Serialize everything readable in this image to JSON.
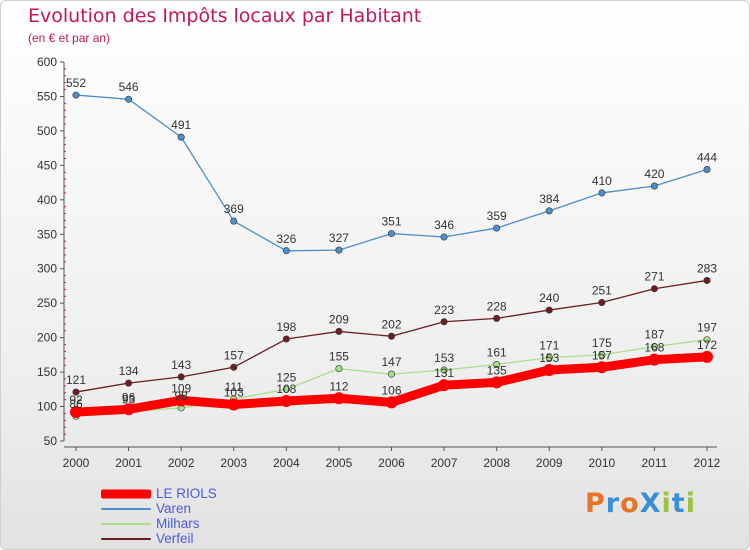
{
  "title": "Evolution des Impôts locaux par Habitant",
  "subtitle": "(en € et par an)",
  "logo": {
    "text": "ProXiti",
    "colors": [
      "#e8732a",
      "#3a8fd8",
      "#e8732a",
      "#3a8fd8",
      "#9bc33c",
      "#3a8fd8",
      "#9bc33c"
    ]
  },
  "chart_data": {
    "type": "line",
    "title": "Evolution des Impôts locaux par Habitant",
    "subtitle": "(en € et par an)",
    "x": [
      2000,
      2001,
      2002,
      2003,
      2004,
      2005,
      2006,
      2007,
      2008,
      2009,
      2010,
      2011,
      2012
    ],
    "ylim": [
      50,
      600
    ],
    "yticks": [
      50,
      100,
      150,
      200,
      250,
      300,
      350,
      400,
      450,
      500,
      550,
      600
    ],
    "grid": false,
    "legend_position": "bottom-left",
    "series": [
      {
        "name": "LE RIOLS",
        "color": "#ff0000",
        "values": [
          92,
          96,
          109,
          103,
          108,
          112,
          106,
          131,
          135,
          153,
          157,
          168,
          172
        ],
        "labels": [
          "92",
          "96",
          "109",
          "103",
          "108",
          "112",
          "106",
          "131",
          "135",
          "153",
          "157",
          "168",
          "172"
        ]
      },
      {
        "name": "Varen",
        "color": "#4f8fc9",
        "values": [
          552,
          546,
          491,
          369,
          326,
          327,
          351,
          346,
          359,
          384,
          410,
          420,
          444
        ],
        "labels": [
          "552",
          "546",
          "491",
          "369",
          "326",
          "327",
          "351",
          "346",
          "359",
          "384",
          "410",
          "420",
          "444"
        ]
      },
      {
        "name": "Milhars",
        "color": "#a6e08a",
        "values": [
          86,
          93,
          98,
          111,
          125,
          155,
          147,
          153,
          161,
          171,
          175,
          187,
          197
        ],
        "labels": [
          "86",
          "93",
          "98",
          "111",
          "125",
          "155",
          "147",
          "153",
          "161",
          "171",
          "175",
          "187",
          "197"
        ]
      },
      {
        "name": "Verfeil",
        "color": "#6b1f22",
        "values": [
          121,
          134,
          143,
          157,
          198,
          209,
          202,
          223,
          228,
          240,
          251,
          271,
          283
        ],
        "labels": [
          "121",
          "134",
          "143",
          "157",
          "198",
          "209",
          "202",
          "223",
          "228",
          "240",
          "251",
          "271",
          "283"
        ]
      }
    ]
  }
}
